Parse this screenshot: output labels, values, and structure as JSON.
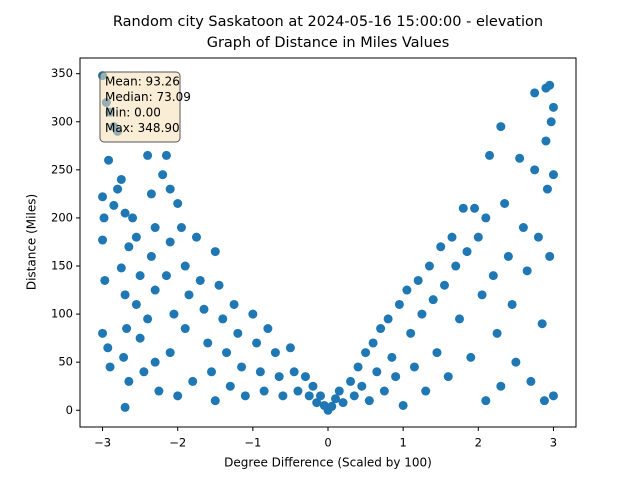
{
  "chart_data": {
    "type": "scatter",
    "title": "Random city Saskatoon at 2024-05-16 15:00:00  - elevation",
    "subtitle": "Graph of Distance in Miles Values",
    "x_label": "Degree Difference (Scaled by 100)",
    "y_label": "Distance (Miles)",
    "annotations": [
      "Mean: 93.26",
      "Median: 73.09",
      "Min: 0.00",
      "Max: 348.90"
    ],
    "xlim": [
      -3.3,
      3.3
    ],
    "ylim": [
      -17.4,
      366.3
    ],
    "xticks": [
      {
        "value": -3,
        "label": "−3"
      },
      {
        "value": -2,
        "label": "−2"
      },
      {
        "value": -1,
        "label": "−1"
      },
      0,
      1,
      2,
      3
    ],
    "yticks": [
      0,
      50,
      100,
      150,
      200,
      250,
      300,
      350
    ],
    "series": [
      {
        "color": "#1f77b4",
        "x": [
          -3,
          -2.95,
          -2.9,
          -2.85,
          -2.8,
          -3,
          -2.98,
          -3,
          -2.97,
          -3,
          -2.93,
          -2.9,
          -2.92,
          -2.85,
          -2.8,
          -2.75,
          -2.7,
          -2.65,
          -2.75,
          -2.7,
          -2.68,
          -2.72,
          -2.65,
          -2.7,
          -2.6,
          -2.55,
          -2.5,
          -2.55,
          -2.5,
          -2.45,
          -2.4,
          -2.35,
          -2.3,
          -2.35,
          -2.3,
          -2.4,
          -2.3,
          -2.25,
          -2.2,
          -2.15,
          -2.1,
          -2.1,
          -2.15,
          -2.05,
          -2.1,
          -2.0,
          -2.0,
          -1.95,
          -1.9,
          -1.85,
          -1.9,
          -1.8,
          -1.75,
          -1.7,
          -1.65,
          -1.6,
          -1.55,
          -1.5,
          -1.5,
          -1.45,
          -1.4,
          -1.35,
          -1.3,
          -1.25,
          -1.2,
          -1.15,
          -1.1,
          -1.0,
          -0.95,
          -0.9,
          -0.85,
          -0.8,
          -0.7,
          -0.65,
          -0.6,
          -0.5,
          -0.45,
          -0.4,
          -0.3,
          -0.25,
          -0.2,
          -0.15,
          -0.1,
          -0.05,
          0,
          0.05,
          0.1,
          0.15,
          0.2,
          0.3,
          0.35,
          0.4,
          0.45,
          0.5,
          0.55,
          0.6,
          0.65,
          0.7,
          0.75,
          0.8,
          0.85,
          0.9,
          0.95,
          1.0,
          1.05,
          1.1,
          1.15,
          1.2,
          1.25,
          1.3,
          1.35,
          1.4,
          1.45,
          1.5,
          1.55,
          1.6,
          1.65,
          1.7,
          1.75,
          1.8,
          1.85,
          1.9,
          1.95,
          2.0,
          2.05,
          2.1,
          2.1,
          2.15,
          2.2,
          2.25,
          2.3,
          2.3,
          2.35,
          2.4,
          2.45,
          2.5,
          2.55,
          2.6,
          2.65,
          2.7,
          2.75,
          2.75,
          2.8,
          2.85,
          2.88,
          2.9,
          2.9,
          2.92,
          2.95,
          2.97,
          3.0,
          3.0,
          3.0,
          2.95
        ],
        "values": [
          348,
          320,
          310,
          295,
          290,
          222,
          200,
          177,
          135,
          80,
          65,
          45,
          260,
          213,
          230,
          240,
          205,
          170,
          148,
          120,
          85,
          55,
          30,
          3,
          200,
          180,
          140,
          110,
          75,
          40,
          265,
          225,
          190,
          160,
          125,
          95,
          50,
          20,
          245,
          265,
          230,
          175,
          140,
          100,
          60,
          15,
          215,
          190,
          150,
          120,
          85,
          30,
          180,
          135,
          105,
          70,
          40,
          10,
          165,
          130,
          95,
          60,
          25,
          110,
          80,
          45,
          15,
          100,
          70,
          40,
          20,
          85,
          60,
          35,
          15,
          65,
          40,
          20,
          35,
          15,
          25,
          8,
          15,
          5,
          0,
          4,
          12,
          20,
          8,
          30,
          15,
          45,
          25,
          60,
          10,
          70,
          40,
          85,
          20,
          95,
          55,
          35,
          110,
          5,
          125,
          80,
          45,
          135,
          100,
          20,
          150,
          115,
          60,
          170,
          130,
          35,
          180,
          150,
          95,
          210,
          165,
          55,
          210,
          180,
          120,
          10,
          200,
          265,
          140,
          80,
          25,
          295,
          215,
          160,
          110,
          50,
          262,
          190,
          145,
          30,
          330,
          250,
          180,
          90,
          10,
          335,
          280,
          230,
          160,
          300,
          315,
          245,
          15,
          338
        ]
      }
    ]
  }
}
